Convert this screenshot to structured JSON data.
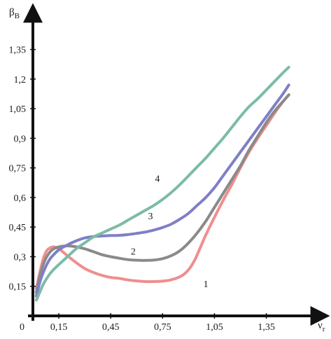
{
  "chart_data": {
    "type": "line",
    "xlabel": "ν",
    "xlabel_sub": "r",
    "ylabel": "β",
    "ylabel_sub": "B",
    "origin_label": "0",
    "xlim": [
      0,
      1.55
    ],
    "ylim": [
      0,
      1.48
    ],
    "x_ticks": [
      0.15,
      0.45,
      0.75,
      1.05,
      1.35
    ],
    "x_tick_labels": [
      "0,15",
      "0,45",
      "0,75",
      "1,05",
      "1,35"
    ],
    "y_ticks": [
      0.15,
      0.3,
      0.45,
      0.6,
      0.75,
      0.9,
      1.05,
      1.2,
      1.35
    ],
    "y_tick_labels": [
      "0,15",
      "0,3",
      "0,45",
      "0,6",
      "0,75",
      "0,9",
      "1,05",
      "1,2",
      "1,35"
    ],
    "grid": false,
    "legend": "none (curves labelled inline)",
    "series": [
      {
        "name": "1",
        "color": "#ef8e8e",
        "x": [
          0.02,
          0.04,
          0.06,
          0.08,
          0.1,
          0.12,
          0.15,
          0.2,
          0.25,
          0.3,
          0.35,
          0.4,
          0.45,
          0.5,
          0.55,
          0.6,
          0.65,
          0.7,
          0.75,
          0.8,
          0.85,
          0.88,
          0.91,
          0.94,
          0.97,
          1.0,
          1.05,
          1.1,
          1.15,
          1.2,
          1.25,
          1.3,
          1.35,
          1.4,
          1.45,
          1.48
        ],
        "y": [
          0.14,
          0.22,
          0.29,
          0.33,
          0.345,
          0.35,
          0.34,
          0.305,
          0.27,
          0.24,
          0.22,
          0.205,
          0.195,
          0.19,
          0.182,
          0.177,
          0.174,
          0.174,
          0.176,
          0.183,
          0.198,
          0.215,
          0.245,
          0.29,
          0.35,
          0.41,
          0.5,
          0.585,
          0.665,
          0.75,
          0.83,
          0.9,
          0.965,
          1.03,
          1.09,
          1.12
        ]
      },
      {
        "name": "2",
        "color": "#8a8a8a",
        "x": [
          0.02,
          0.04,
          0.06,
          0.08,
          0.1,
          0.12,
          0.15,
          0.2,
          0.25,
          0.3,
          0.35,
          0.4,
          0.45,
          0.5,
          0.55,
          0.6,
          0.65,
          0.7,
          0.75,
          0.8,
          0.85,
          0.9,
          0.95,
          1.0,
          1.05,
          1.1,
          1.15,
          1.2,
          1.25,
          1.3,
          1.35,
          1.4,
          1.45,
          1.48
        ],
        "y": [
          0.12,
          0.2,
          0.26,
          0.3,
          0.325,
          0.34,
          0.35,
          0.355,
          0.35,
          0.34,
          0.325,
          0.31,
          0.3,
          0.292,
          0.285,
          0.282,
          0.281,
          0.283,
          0.29,
          0.305,
          0.33,
          0.37,
          0.42,
          0.48,
          0.55,
          0.62,
          0.69,
          0.76,
          0.84,
          0.91,
          0.98,
          1.04,
          1.09,
          1.12
        ]
      },
      {
        "name": "3",
        "color": "#7f7fc7",
        "x": [
          0.02,
          0.04,
          0.06,
          0.08,
          0.1,
          0.12,
          0.15,
          0.2,
          0.25,
          0.3,
          0.35,
          0.4,
          0.45,
          0.5,
          0.55,
          0.6,
          0.65,
          0.7,
          0.75,
          0.8,
          0.85,
          0.9,
          0.95,
          1.0,
          1.05,
          1.1,
          1.15,
          1.2,
          1.25,
          1.3,
          1.35,
          1.4,
          1.45,
          1.48
        ],
        "y": [
          0.1,
          0.17,
          0.22,
          0.26,
          0.29,
          0.31,
          0.335,
          0.36,
          0.38,
          0.395,
          0.402,
          0.405,
          0.407,
          0.408,
          0.412,
          0.418,
          0.425,
          0.435,
          0.448,
          0.465,
          0.49,
          0.52,
          0.56,
          0.6,
          0.65,
          0.71,
          0.77,
          0.83,
          0.89,
          0.95,
          1.01,
          1.07,
          1.13,
          1.17
        ]
      },
      {
        "name": "4",
        "color": "#7dbba6",
        "x": [
          0.02,
          0.04,
          0.06,
          0.08,
          0.1,
          0.12,
          0.15,
          0.2,
          0.25,
          0.3,
          0.35,
          0.4,
          0.45,
          0.5,
          0.55,
          0.6,
          0.65,
          0.7,
          0.75,
          0.8,
          0.85,
          0.9,
          0.95,
          1.0,
          1.05,
          1.1,
          1.15,
          1.2,
          1.25,
          1.3,
          1.35,
          1.4,
          1.45,
          1.48
        ],
        "y": [
          0.08,
          0.12,
          0.16,
          0.19,
          0.215,
          0.235,
          0.26,
          0.3,
          0.34,
          0.37,
          0.4,
          0.42,
          0.44,
          0.46,
          0.485,
          0.51,
          0.535,
          0.56,
          0.59,
          0.625,
          0.665,
          0.71,
          0.755,
          0.8,
          0.85,
          0.9,
          0.955,
          1.01,
          1.06,
          1.1,
          1.145,
          1.19,
          1.235,
          1.26
        ]
      }
    ],
    "series_labels": [
      {
        "name": "1",
        "x": 1.0,
        "y": 0.145
      },
      {
        "name": "2",
        "x": 0.58,
        "y": 0.31
      },
      {
        "name": "3",
        "x": 0.68,
        "y": 0.49
      },
      {
        "name": "4",
        "x": 0.72,
        "y": 0.68
      }
    ]
  }
}
